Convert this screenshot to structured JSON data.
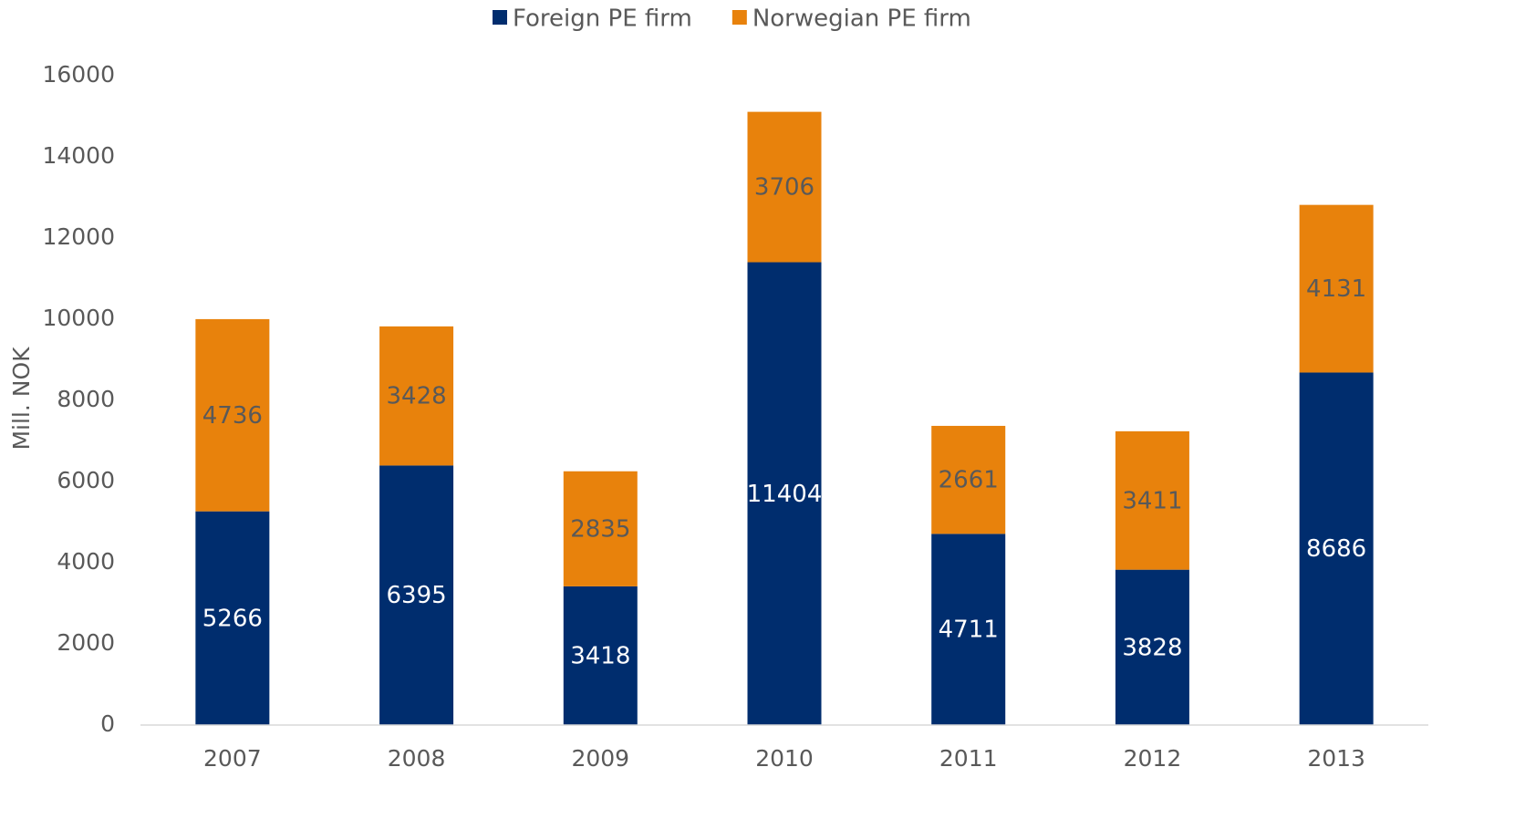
{
  "chart_data": {
    "type": "stacked_bar",
    "y_label": "Mill. NOK",
    "categories": [
      "2007",
      "2008",
      "2009",
      "2010",
      "2011",
      "2012",
      "2013"
    ],
    "series": [
      {
        "name": "Foreign PE firm",
        "color": "#002d6e",
        "values": [
          5266,
          6395,
          3418,
          11404,
          4711,
          3828,
          8686
        ]
      },
      {
        "name": "Norwegian PE firm",
        "color": "#e8820c",
        "values": [
          4736,
          3428,
          2835,
          3706,
          2661,
          3411,
          4131
        ]
      }
    ],
    "ylim": [
      0,
      16000
    ],
    "yticks": [
      0,
      2000,
      4000,
      6000,
      8000,
      10000,
      12000,
      14000,
      16000
    ],
    "grid": false,
    "legend": "top"
  }
}
